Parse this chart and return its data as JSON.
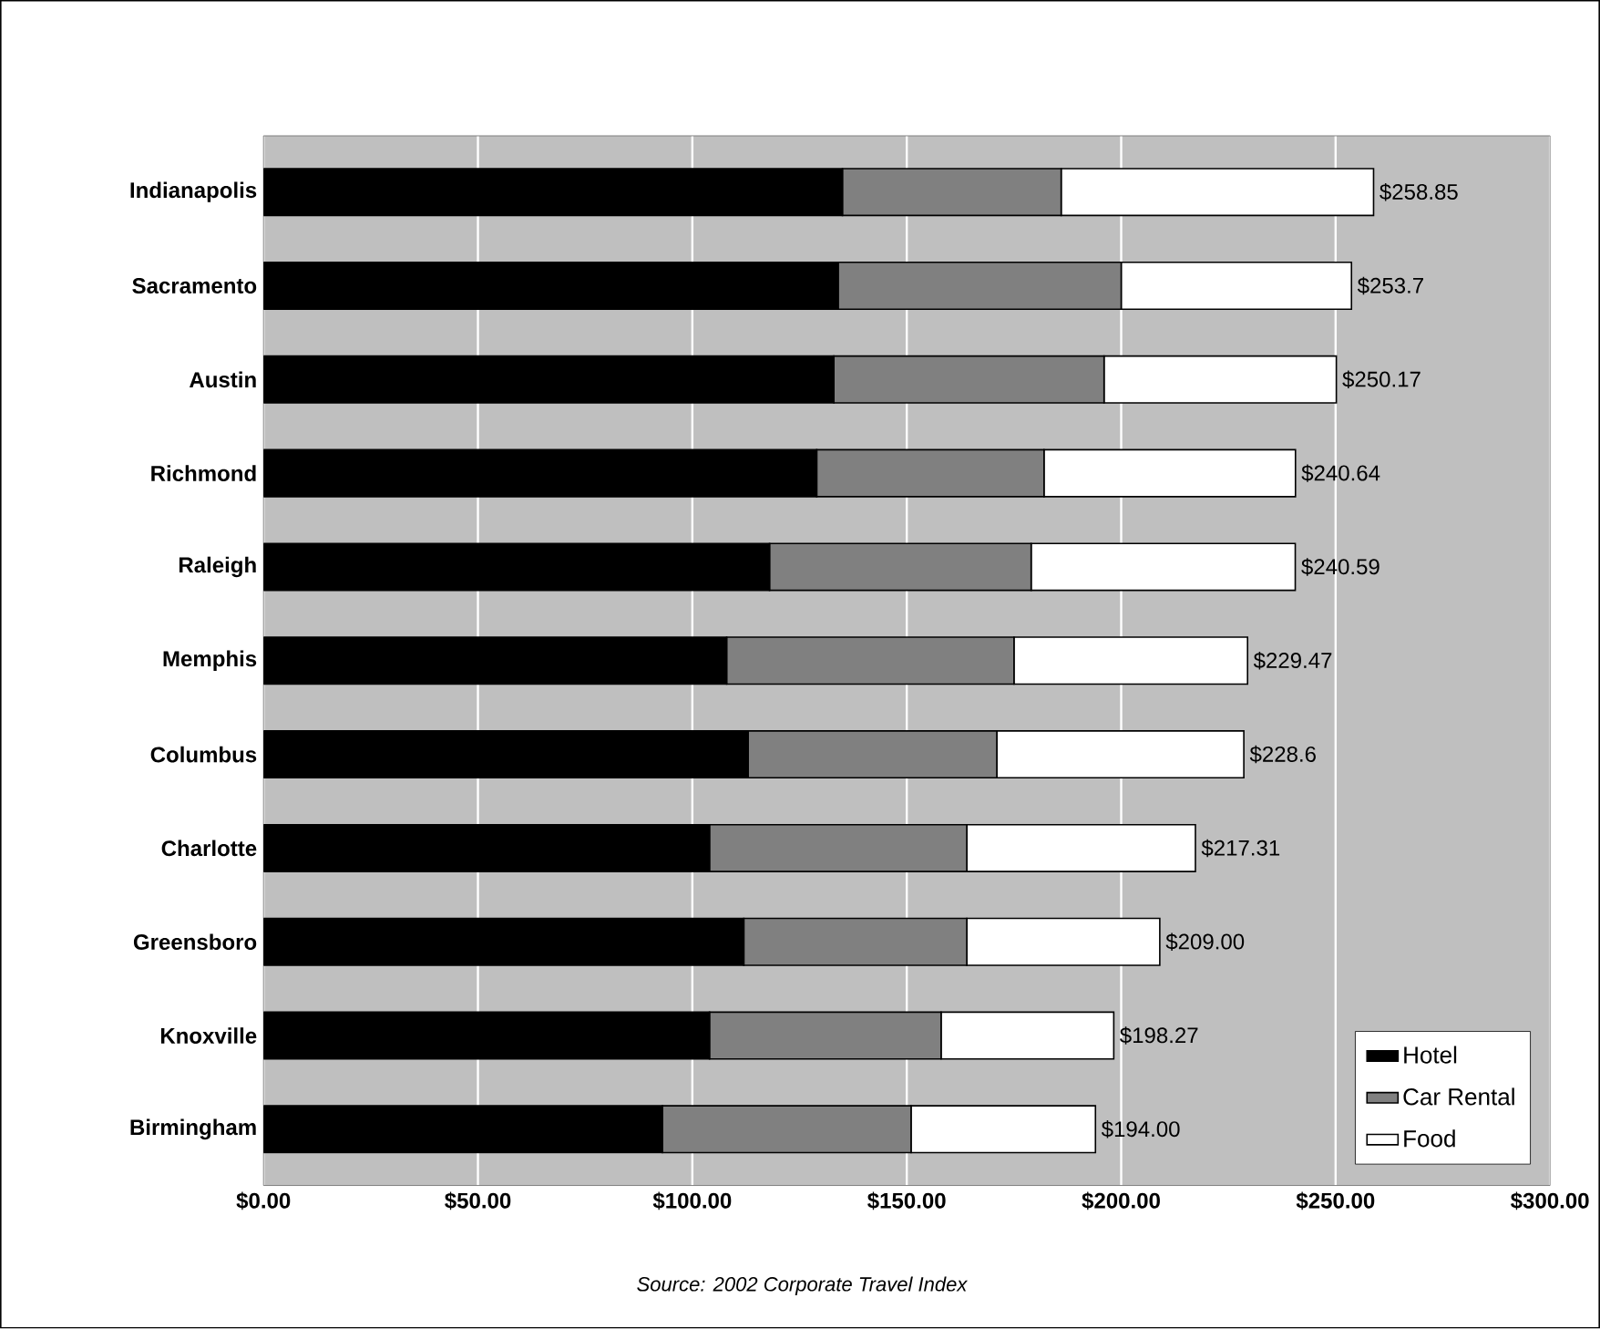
{
  "chart_data": {
    "type": "bar",
    "orientation": "horizontal",
    "stacked": true,
    "categories": [
      "Indianapolis",
      "Sacramento",
      "Austin",
      "Richmond",
      "Raleigh",
      "Memphis",
      "Columbus",
      "Charlotte",
      "Greensboro",
      "Knoxville",
      "Birmingham"
    ],
    "series": [
      {
        "name": "Hotel",
        "color": "#000000",
        "values": [
          135,
          134,
          133,
          129,
          118,
          108,
          113,
          104,
          112,
          104,
          93
        ]
      },
      {
        "name": "Car Rental",
        "color": "#808080",
        "values": [
          51,
          66,
          63,
          53,
          61,
          67,
          58,
          60,
          52,
          54,
          58
        ]
      },
      {
        "name": "Food",
        "color": "#ffffff",
        "values": [
          72.85,
          53.7,
          54.17,
          58.64,
          61.59,
          54.47,
          57.6,
          53.31,
          45,
          40.27,
          43
        ]
      }
    ],
    "totals": [
      "$258.85",
      "$253.7",
      "$250.17",
      "$240.64",
      "$240.59",
      "$229.47",
      "$228.6",
      "$217.31",
      "$209.00",
      "$198.27",
      "$194.00"
    ],
    "xlim": [
      0,
      300
    ],
    "xticks": [
      {
        "value": 0,
        "label": "$0.00"
      },
      {
        "value": 50,
        "label": "$50.00"
      },
      {
        "value": 100,
        "label": "$100.00"
      },
      {
        "value": 150,
        "label": "$150.00"
      },
      {
        "value": 200,
        "label": "$200.00"
      },
      {
        "value": 250,
        "label": "$250.00"
      },
      {
        "value": 300,
        "label": "$300.00"
      }
    ],
    "grid": "x",
    "legend": "bottom right",
    "annotations": [
      "Source:  2002 Corporate Travel Index"
    ]
  }
}
